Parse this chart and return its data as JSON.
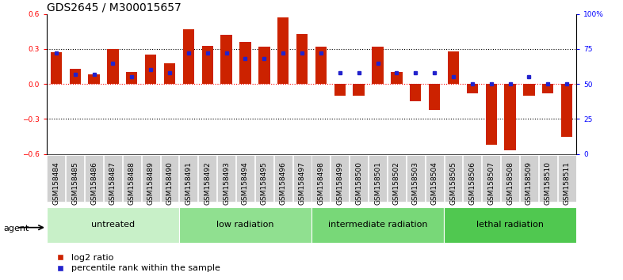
{
  "title": "GDS2645 / M300015657",
  "samples": [
    "GSM158484",
    "GSM158485",
    "GSM158486",
    "GSM158487",
    "GSM158488",
    "GSM158489",
    "GSM158490",
    "GSM158491",
    "GSM158492",
    "GSM158493",
    "GSM158494",
    "GSM158495",
    "GSM158496",
    "GSM158497",
    "GSM158498",
    "GSM158499",
    "GSM158500",
    "GSM158501",
    "GSM158502",
    "GSM158503",
    "GSM158504",
    "GSM158505",
    "GSM158506",
    "GSM158507",
    "GSM158508",
    "GSM158509",
    "GSM158510",
    "GSM158511"
  ],
  "log2_ratio": [
    0.27,
    0.13,
    0.08,
    0.3,
    0.1,
    0.25,
    0.18,
    0.47,
    0.33,
    0.42,
    0.36,
    0.32,
    0.57,
    0.43,
    0.32,
    -0.1,
    -0.1,
    0.32,
    0.1,
    -0.15,
    -0.22,
    0.28,
    -0.08,
    -0.52,
    -0.57,
    -0.1,
    -0.08,
    -0.45
  ],
  "percentile": [
    72,
    57,
    57,
    65,
    55,
    60,
    58,
    72,
    72,
    72,
    68,
    68,
    72,
    72,
    72,
    58,
    58,
    65,
    58,
    58,
    58,
    55,
    50,
    50,
    50,
    55,
    50,
    50
  ],
  "groups": [
    {
      "label": "untreated",
      "start": 0,
      "end": 7,
      "color": "#c8f0c8"
    },
    {
      "label": "low radiation",
      "start": 7,
      "end": 14,
      "color": "#90e090"
    },
    {
      "label": "intermediate radiation",
      "start": 14,
      "end": 21,
      "color": "#78d878"
    },
    {
      "label": "lethal radiation",
      "start": 21,
      "end": 28,
      "color": "#50c850"
    }
  ],
  "ylim": [
    -0.6,
    0.6
  ],
  "y_ticks_left": [
    -0.6,
    -0.3,
    0.0,
    0.3,
    0.6
  ],
  "y_ticks_right": [
    0,
    25,
    50,
    75,
    100
  ],
  "bar_color": "#cc2200",
  "dot_color": "#2222cc",
  "title_fontsize": 10,
  "tick_fontsize": 6.5,
  "label_fontsize": 8,
  "legend_fontsize": 8,
  "agent_label": "agent"
}
